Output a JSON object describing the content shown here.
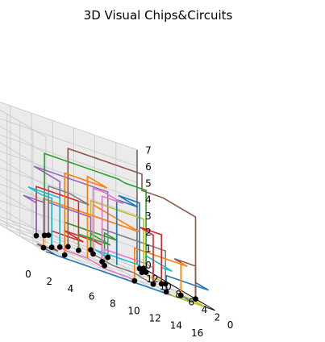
{
  "chart_data": {
    "type": "line3d",
    "title": "3D Visual Chips&Circuits",
    "xlabel": "",
    "ylabel": "",
    "zlabel": "",
    "x_ticks": [
      "0",
      "2",
      "4",
      "6",
      "8",
      "10",
      "12",
      "14",
      "16"
    ],
    "y_ticks": [
      "0",
      "2",
      "4",
      "6",
      "8",
      "10",
      "12"
    ],
    "z_ticks": [
      "0",
      "1",
      "2",
      "3",
      "4",
      "5",
      "6",
      "7"
    ],
    "xlim": [
      0,
      16
    ],
    "ylim": [
      0,
      12
    ],
    "zlim": [
      0,
      7
    ],
    "grid": true,
    "colors": [
      "#1f77b4",
      "#ff7f0e",
      "#2ca02c",
      "#d62728",
      "#9467bd",
      "#8c564b",
      "#e377c2",
      "#7f7f7f",
      "#bcbd22",
      "#17becf"
    ],
    "gates": [
      [
        1,
        2
      ],
      [
        3,
        2
      ],
      [
        3,
        4
      ],
      [
        5,
        6
      ],
      [
        7,
        8
      ],
      [
        8,
        4
      ],
      [
        9,
        6
      ],
      [
        12,
        3
      ],
      [
        10,
        9
      ],
      [
        12,
        10
      ],
      [
        11,
        11
      ],
      [
        14,
        5
      ],
      [
        14,
        2
      ],
      [
        15,
        6
      ],
      [
        16,
        3
      ],
      [
        15,
        9
      ],
      [
        16,
        11
      ],
      [
        14,
        8
      ],
      [
        15,
        10
      ],
      [
        12,
        1
      ],
      [
        9,
        1
      ],
      [
        6,
        10
      ],
      [
        8,
        8
      ],
      [
        4,
        8
      ],
      [
        7,
        11
      ]
    ],
    "series": [
      {
        "points": [
          [
            1,
            2,
            0
          ],
          [
            1,
            0,
            0
          ],
          [
            14,
            0,
            0
          ],
          [
            14,
            2,
            0
          ]
        ]
      },
      {
        "points": [
          [
            1,
            2,
            0
          ],
          [
            1,
            2,
            3
          ],
          [
            10,
            2,
            3
          ],
          [
            10,
            9,
            3
          ],
          [
            10,
            9,
            0
          ]
        ]
      },
      {
        "points": [
          [
            3,
            2,
            0
          ],
          [
            3,
            2,
            2
          ],
          [
            8,
            2,
            2
          ],
          [
            8,
            4,
            2
          ],
          [
            8,
            4,
            0
          ]
        ]
      },
      {
        "points": [
          [
            3,
            4,
            0
          ],
          [
            3,
            4,
            1
          ],
          [
            6,
            4,
            1
          ],
          [
            6,
            7,
            1
          ],
          [
            9,
            7,
            1
          ],
          [
            9,
            6,
            1
          ],
          [
            9,
            6,
            0
          ]
        ]
      },
      {
        "points": [
          [
            5,
            6,
            0
          ],
          [
            5,
            6,
            4
          ],
          [
            5,
            10,
            4
          ],
          [
            12,
            10,
            4
          ],
          [
            12,
            10,
            0
          ]
        ]
      },
      {
        "points": [
          [
            7,
            8,
            0
          ],
          [
            7,
            8,
            6
          ],
          [
            14,
            8,
            6
          ],
          [
            14,
            8,
            5
          ],
          [
            16,
            8,
            5
          ],
          [
            16,
            3,
            5
          ],
          [
            16,
            3,
            0
          ]
        ]
      },
      {
        "points": [
          [
            8,
            4,
            0
          ],
          [
            8,
            4,
            1
          ],
          [
            12,
            4,
            1
          ],
          [
            12,
            3,
            1
          ],
          [
            12,
            3,
            0
          ]
        ]
      },
      {
        "points": [
          [
            9,
            6,
            0
          ],
          [
            9,
            6,
            2
          ],
          [
            15,
            6,
            2
          ],
          [
            15,
            6,
            0
          ]
        ]
      },
      {
        "points": [
          [
            11,
            11,
            0
          ],
          [
            11,
            11,
            3
          ],
          [
            16,
            11,
            3
          ],
          [
            16,
            11,
            0
          ]
        ]
      },
      {
        "points": [
          [
            14,
            5,
            0
          ],
          [
            14,
            5,
            1
          ],
          [
            15,
            5,
            1
          ],
          [
            15,
            9,
            1
          ],
          [
            15,
            9,
            0
          ]
        ]
      },
      {
        "points": [
          [
            12,
            1,
            0
          ],
          [
            12,
            1,
            1
          ],
          [
            16,
            1,
            1
          ],
          [
            16,
            3,
            1
          ],
          [
            16,
            3,
            0
          ]
        ]
      },
      {
        "points": [
          [
            9,
            1,
            0
          ],
          [
            9,
            1,
            2
          ],
          [
            14,
            1,
            2
          ],
          [
            14,
            2,
            2
          ],
          [
            14,
            2,
            0
          ]
        ]
      },
      {
        "points": [
          [
            6,
            10,
            0
          ],
          [
            6,
            10,
            5
          ],
          [
            13,
            10,
            5
          ],
          [
            13,
            9,
            5
          ],
          [
            15,
            9,
            5
          ],
          [
            15,
            9,
            0
          ]
        ]
      },
      {
        "points": [
          [
            4,
            8,
            0
          ],
          [
            4,
            8,
            3
          ],
          [
            8,
            8,
            3
          ],
          [
            8,
            8,
            0
          ]
        ]
      },
      {
        "points": [
          [
            7,
            11,
            0
          ],
          [
            7,
            11,
            2
          ],
          [
            11,
            11,
            2
          ],
          [
            11,
            11,
            0
          ]
        ]
      },
      {
        "points": [
          [
            1,
            2,
            0
          ],
          [
            1,
            3,
            0
          ],
          [
            3,
            3,
            0
          ],
          [
            3,
            4,
            0
          ]
        ]
      },
      {
        "points": [
          [
            5,
            6,
            0
          ],
          [
            5,
            5,
            0
          ],
          [
            7,
            5,
            0
          ],
          [
            7,
            2,
            0
          ],
          [
            9,
            2,
            0
          ],
          [
            9,
            1,
            0
          ]
        ]
      },
      {
        "points": [
          [
            10,
            9,
            0
          ],
          [
            10,
            6,
            0
          ],
          [
            12,
            6,
            0
          ],
          [
            12,
            3,
            0
          ]
        ]
      },
      {
        "points": [
          [
            14,
            8,
            0
          ],
          [
            14,
            7,
            0
          ],
          [
            15,
            7,
            0
          ],
          [
            15,
            6,
            0
          ]
        ]
      },
      {
        "points": [
          [
            12,
            10,
            0
          ],
          [
            12,
            12,
            0
          ],
          [
            16,
            12,
            0
          ],
          [
            16,
            11,
            0
          ]
        ]
      },
      {
        "points": [
          [
            15,
            10,
            0
          ],
          [
            15,
            10,
            4
          ],
          [
            13,
            10,
            4
          ],
          [
            13,
            7,
            4
          ],
          [
            11,
            7,
            4
          ],
          [
            11,
            7,
            0
          ]
        ]
      },
      {
        "points": [
          [
            3,
            2,
            0
          ],
          [
            3,
            2,
            5
          ],
          [
            7,
            2,
            5
          ],
          [
            7,
            5,
            5
          ],
          [
            7,
            5,
            0
          ]
        ]
      },
      {
        "points": [
          [
            8,
            8,
            0
          ],
          [
            8,
            8,
            1
          ],
          [
            11,
            8,
            1
          ],
          [
            11,
            11,
            1
          ],
          [
            11,
            11,
            0
          ]
        ]
      },
      {
        "points": [
          [
            14,
            5,
            0
          ],
          [
            14,
            5,
            3
          ],
          [
            12,
            5,
            3
          ],
          [
            12,
            3,
            3
          ],
          [
            12,
            3,
            0
          ]
        ]
      },
      {
        "points": [
          [
            6,
            10,
            0
          ],
          [
            6,
            10,
            2
          ],
          [
            4,
            10,
            2
          ],
          [
            4,
            8,
            2
          ],
          [
            4,
            8,
            0
          ]
        ]
      },
      {
        "points": [
          [
            16,
            3,
            0
          ],
          [
            16,
            3,
            2
          ],
          [
            14,
            3,
            2
          ],
          [
            14,
            2,
            2
          ]
        ]
      },
      {
        "points": [
          [
            9,
            6,
            0
          ],
          [
            9,
            6,
            4
          ],
          [
            11,
            6,
            4
          ],
          [
            11,
            9,
            4
          ],
          [
            10,
            9,
            4
          ],
          [
            10,
            9,
            0
          ]
        ]
      },
      {
        "points": [
          [
            7,
            11,
            0
          ],
          [
            7,
            11,
            3
          ],
          [
            9,
            11,
            3
          ],
          [
            9,
            8,
            3
          ],
          [
            8,
            8,
            3
          ]
        ]
      },
      {
        "points": [
          [
            12,
            1,
            0
          ],
          [
            12,
            0,
            0
          ],
          [
            15,
            0,
            0
          ],
          [
            15,
            2,
            0
          ],
          [
            14,
            2,
            0
          ]
        ]
      },
      {
        "points": [
          [
            5,
            6,
            0
          ],
          [
            5,
            6,
            3
          ],
          [
            2,
            6,
            3
          ],
          [
            2,
            4,
            3
          ],
          [
            3,
            4,
            3
          ],
          [
            3,
            4,
            0
          ]
        ]
      }
    ]
  }
}
